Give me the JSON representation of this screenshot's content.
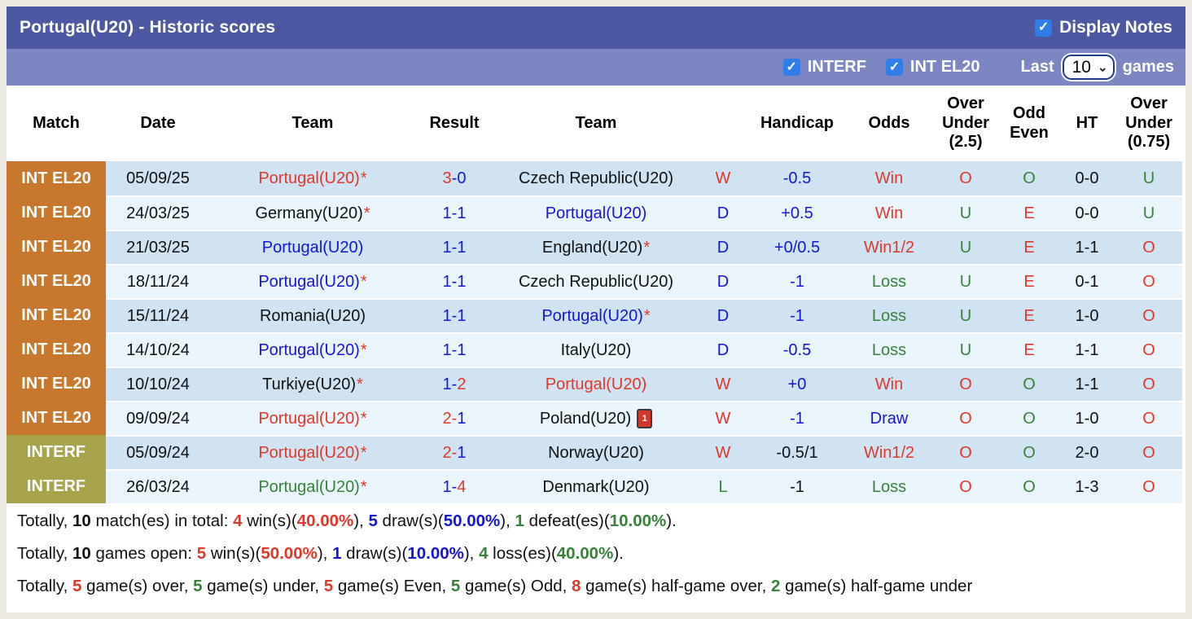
{
  "colors": {
    "red": "#e0372b",
    "blue": "#1515d3",
    "green": "#37813b",
    "accent_checkbox": "#2e7de9",
    "titlebar_bg": "#4c59a2",
    "filterbar_bg": "#7b86c3",
    "badge_orange": "#c8772e",
    "badge_olive": "#a7a34a"
  },
  "header": {
    "title": "Portugal(U20) - Historic scores",
    "display_notes_label": "Display Notes",
    "display_notes_checked": true
  },
  "filterbar": {
    "filters": [
      {
        "label": "INTERF",
        "checked": true
      },
      {
        "label": "INT EL20",
        "checked": true
      }
    ],
    "last_label": "Last",
    "select_value": "10",
    "games_label": "games"
  },
  "table": {
    "columns": [
      "Match",
      "Date",
      "Team",
      "Result",
      "Team",
      "",
      "Handicap",
      "Odds",
      "Over Under (2.5)",
      "Odd Even",
      "HT",
      "Over Under (0.75)"
    ],
    "rows": [
      {
        "league": "INT EL20",
        "league_type": "orange",
        "date": "05/09/25",
        "home": {
          "name": "Portugal(U20)",
          "color": "red",
          "star": true
        },
        "result": {
          "h": "3",
          "hc": "red",
          "dc": "blue",
          "a": "0",
          "ac": "blue"
        },
        "away": {
          "name": "Czech Republic(U20)",
          "color": "black",
          "star": false
        },
        "wdl": {
          "t": "W",
          "c": "red"
        },
        "handicap": {
          "t": "-0.5",
          "c": "blue"
        },
        "odds": {
          "t": "Win",
          "c": "red"
        },
        "ou25": {
          "t": "O",
          "c": "red"
        },
        "odd_even": {
          "t": "O",
          "c": "green"
        },
        "ht": "0-0",
        "ou075": {
          "t": "U",
          "c": "green"
        }
      },
      {
        "league": "INT EL20",
        "league_type": "orange",
        "date": "24/03/25",
        "home": {
          "name": "Germany(U20)",
          "color": "black",
          "star": true
        },
        "result": {
          "h": "1",
          "hc": "blue",
          "dc": "blue",
          "a": "1",
          "ac": "blue"
        },
        "away": {
          "name": "Portugal(U20)",
          "color": "blue",
          "star": false
        },
        "wdl": {
          "t": "D",
          "c": "blue"
        },
        "handicap": {
          "t": "+0.5",
          "c": "blue"
        },
        "odds": {
          "t": "Win",
          "c": "red"
        },
        "ou25": {
          "t": "U",
          "c": "green"
        },
        "odd_even": {
          "t": "E",
          "c": "red"
        },
        "ht": "0-0",
        "ou075": {
          "t": "U",
          "c": "green"
        }
      },
      {
        "league": "INT EL20",
        "league_type": "orange",
        "date": "21/03/25",
        "home": {
          "name": "Portugal(U20)",
          "color": "blue",
          "star": false
        },
        "result": {
          "h": "1",
          "hc": "blue",
          "dc": "blue",
          "a": "1",
          "ac": "blue"
        },
        "away": {
          "name": "England(U20)",
          "color": "black",
          "star": true
        },
        "wdl": {
          "t": "D",
          "c": "blue"
        },
        "handicap": {
          "t": "+0/0.5",
          "c": "blue"
        },
        "odds": {
          "t": "Win1/2",
          "c": "red"
        },
        "ou25": {
          "t": "U",
          "c": "green"
        },
        "odd_even": {
          "t": "E",
          "c": "red"
        },
        "ht": "1-1",
        "ou075": {
          "t": "O",
          "c": "red"
        }
      },
      {
        "league": "INT EL20",
        "league_type": "orange",
        "date": "18/11/24",
        "home": {
          "name": "Portugal(U20)",
          "color": "blue",
          "star": true
        },
        "result": {
          "h": "1",
          "hc": "blue",
          "dc": "blue",
          "a": "1",
          "ac": "blue"
        },
        "away": {
          "name": "Czech Republic(U20)",
          "color": "black",
          "star": false
        },
        "wdl": {
          "t": "D",
          "c": "blue"
        },
        "handicap": {
          "t": "-1",
          "c": "blue"
        },
        "odds": {
          "t": "Loss",
          "c": "green"
        },
        "ou25": {
          "t": "U",
          "c": "green"
        },
        "odd_even": {
          "t": "E",
          "c": "red"
        },
        "ht": "0-1",
        "ou075": {
          "t": "O",
          "c": "red"
        }
      },
      {
        "league": "INT EL20",
        "league_type": "orange",
        "date": "15/11/24",
        "home": {
          "name": "Romania(U20)",
          "color": "black",
          "star": false
        },
        "result": {
          "h": "1",
          "hc": "blue",
          "dc": "blue",
          "a": "1",
          "ac": "blue"
        },
        "away": {
          "name": "Portugal(U20)",
          "color": "blue",
          "star": true
        },
        "wdl": {
          "t": "D",
          "c": "blue"
        },
        "handicap": {
          "t": "-1",
          "c": "blue"
        },
        "odds": {
          "t": "Loss",
          "c": "green"
        },
        "ou25": {
          "t": "U",
          "c": "green"
        },
        "odd_even": {
          "t": "E",
          "c": "red"
        },
        "ht": "1-0",
        "ou075": {
          "t": "O",
          "c": "red"
        }
      },
      {
        "league": "INT EL20",
        "league_type": "orange",
        "date": "14/10/24",
        "home": {
          "name": "Portugal(U20)",
          "color": "blue",
          "star": true
        },
        "result": {
          "h": "1",
          "hc": "blue",
          "dc": "blue",
          "a": "1",
          "ac": "blue"
        },
        "away": {
          "name": "Italy(U20)",
          "color": "black",
          "star": false
        },
        "wdl": {
          "t": "D",
          "c": "blue"
        },
        "handicap": {
          "t": "-0.5",
          "c": "blue"
        },
        "odds": {
          "t": "Loss",
          "c": "green"
        },
        "ou25": {
          "t": "U",
          "c": "green"
        },
        "odd_even": {
          "t": "E",
          "c": "red"
        },
        "ht": "1-1",
        "ou075": {
          "t": "O",
          "c": "red"
        }
      },
      {
        "league": "INT EL20",
        "league_type": "orange",
        "date": "10/10/24",
        "home": {
          "name": "Turkiye(U20)",
          "color": "black",
          "star": true
        },
        "result": {
          "h": "1",
          "hc": "blue",
          "dc": "blue",
          "a": "2",
          "ac": "red"
        },
        "away": {
          "name": "Portugal(U20)",
          "color": "red",
          "star": false
        },
        "wdl": {
          "t": "W",
          "c": "red"
        },
        "handicap": {
          "t": "+0",
          "c": "blue"
        },
        "odds": {
          "t": "Win",
          "c": "red"
        },
        "ou25": {
          "t": "O",
          "c": "red"
        },
        "odd_even": {
          "t": "O",
          "c": "green"
        },
        "ht": "1-1",
        "ou075": {
          "t": "O",
          "c": "red"
        }
      },
      {
        "league": "INT EL20",
        "league_type": "orange",
        "date": "09/09/24",
        "home": {
          "name": "Portugal(U20)",
          "color": "red",
          "star": true
        },
        "result": {
          "h": "2",
          "hc": "red",
          "dc": "red",
          "a": "1",
          "ac": "blue"
        },
        "away": {
          "name": "Poland(U20)",
          "color": "black",
          "star": false,
          "red_card": "1"
        },
        "wdl": {
          "t": "W",
          "c": "red"
        },
        "handicap": {
          "t": "-1",
          "c": "blue"
        },
        "odds": {
          "t": "Draw",
          "c": "blue"
        },
        "ou25": {
          "t": "O",
          "c": "red"
        },
        "odd_even": {
          "t": "O",
          "c": "green"
        },
        "ht": "1-0",
        "ou075": {
          "t": "O",
          "c": "red"
        }
      },
      {
        "league": "INTERF",
        "league_type": "olive",
        "date": "05/09/24",
        "home": {
          "name": "Portugal(U20)",
          "color": "red",
          "star": true
        },
        "result": {
          "h": "2",
          "hc": "red",
          "dc": "red",
          "a": "1",
          "ac": "blue"
        },
        "away": {
          "name": "Norway(U20)",
          "color": "black",
          "star": false
        },
        "wdl": {
          "t": "W",
          "c": "red"
        },
        "handicap": {
          "t": "-0.5/1",
          "c": "black"
        },
        "odds": {
          "t": "Win1/2",
          "c": "red"
        },
        "ou25": {
          "t": "O",
          "c": "red"
        },
        "odd_even": {
          "t": "O",
          "c": "green"
        },
        "ht": "2-0",
        "ou075": {
          "t": "O",
          "c": "red"
        }
      },
      {
        "league": "INTERF",
        "league_type": "olive",
        "date": "26/03/24",
        "home": {
          "name": "Portugal(U20)",
          "color": "green",
          "star": true
        },
        "result": {
          "h": "1",
          "hc": "blue",
          "dc": "blue",
          "a": "4",
          "ac": "red"
        },
        "away": {
          "name": "Denmark(U20)",
          "color": "black",
          "star": false
        },
        "wdl": {
          "t": "L",
          "c": "green"
        },
        "handicap": {
          "t": "-1",
          "c": "black"
        },
        "odds": {
          "t": "Loss",
          "c": "green"
        },
        "ou25": {
          "t": "O",
          "c": "red"
        },
        "odd_even": {
          "t": "O",
          "c": "green"
        },
        "ht": "1-3",
        "ou075": {
          "t": "O",
          "c": "red"
        }
      }
    ]
  },
  "summary": {
    "lines": [
      [
        {
          "t": "Totally, "
        },
        {
          "t": "10",
          "b": true
        },
        {
          "t": " match(es) in total: "
        },
        {
          "t": "4",
          "c": "red",
          "b": true
        },
        {
          "t": " win(s)("
        },
        {
          "t": "40.00%",
          "c": "red",
          "b": true
        },
        {
          "t": "), "
        },
        {
          "t": "5",
          "c": "blue",
          "b": true
        },
        {
          "t": " draw(s)("
        },
        {
          "t": "50.00%",
          "c": "blue",
          "b": true
        },
        {
          "t": "), "
        },
        {
          "t": "1",
          "c": "green",
          "b": true
        },
        {
          "t": " defeat(es)("
        },
        {
          "t": "10.00%",
          "c": "green",
          "b": true
        },
        {
          "t": ")."
        }
      ],
      [
        {
          "t": "Totally, "
        },
        {
          "t": "10",
          "b": true
        },
        {
          "t": " games open: "
        },
        {
          "t": "5",
          "c": "red",
          "b": true
        },
        {
          "t": " win(s)("
        },
        {
          "t": "50.00%",
          "c": "red",
          "b": true
        },
        {
          "t": "), "
        },
        {
          "t": "1",
          "c": "blue",
          "b": true
        },
        {
          "t": " draw(s)("
        },
        {
          "t": "10.00%",
          "c": "blue",
          "b": true
        },
        {
          "t": "), "
        },
        {
          "t": "4",
          "c": "green",
          "b": true
        },
        {
          "t": " loss(es)("
        },
        {
          "t": "40.00%",
          "c": "green",
          "b": true
        },
        {
          "t": ")."
        }
      ],
      [
        {
          "t": "Totally, "
        },
        {
          "t": "5",
          "c": "red",
          "b": true
        },
        {
          "t": " game(s) over, "
        },
        {
          "t": "5",
          "c": "green",
          "b": true
        },
        {
          "t": " game(s) under, "
        },
        {
          "t": "5",
          "c": "red",
          "b": true
        },
        {
          "t": " game(s) Even, "
        },
        {
          "t": "5",
          "c": "green",
          "b": true
        },
        {
          "t": " game(s) Odd, "
        },
        {
          "t": "8",
          "c": "red",
          "b": true
        },
        {
          "t": " game(s) half-game over, "
        },
        {
          "t": "2",
          "c": "green",
          "b": true
        },
        {
          "t": " game(s) half-game under"
        }
      ]
    ]
  }
}
